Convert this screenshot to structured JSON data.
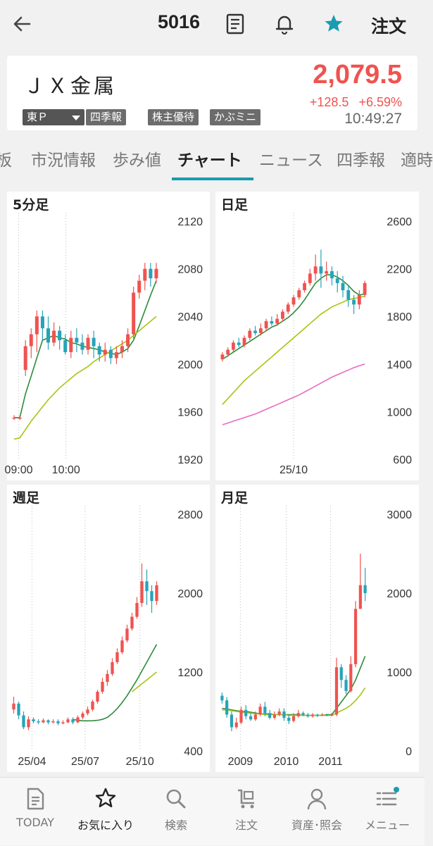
{
  "header": {
    "code": "5016",
    "order_label": "注文",
    "icons": [
      "back-arrow-icon",
      "memo-icon",
      "bell-icon",
      "star-icon"
    ],
    "favorite_color": "#1a9bb0"
  },
  "stock": {
    "name": "ＪＸ金属",
    "market": "東Ｐ",
    "badges": [
      "四季報",
      "株主優待",
      "かぶミニ"
    ],
    "price": "2,079.5",
    "change": "+128.5",
    "change_pct": "+6.59%",
    "time": "10:49:27",
    "up_color": "#ef5350"
  },
  "tabs": [
    {
      "label": "板"
    },
    {
      "label": "市況情報"
    },
    {
      "label": "歩み値"
    },
    {
      "label": "チャート",
      "active": true
    },
    {
      "label": "ニュース"
    },
    {
      "label": "四季報"
    },
    {
      "label": "適時"
    }
  ],
  "charts": [
    {
      "title": "5分足",
      "ylim": [
        1920,
        2120
      ],
      "yticks": [
        "2120",
        "2080",
        "2040",
        "2000",
        "1960",
        "1920"
      ],
      "xticks": [
        {
          "label": "09:00",
          "at": 0.05
        },
        {
          "label": "10:00",
          "at": 0.37
        }
      ],
      "candles": [
        [
          1955,
          1955,
          1953,
          1957
        ],
        [
          1955,
          1955,
          1953,
          1957
        ],
        [
          1995,
          2015,
          1990,
          2020
        ],
        [
          2015,
          2025,
          2005,
          2030
        ],
        [
          2025,
          2040,
          2010,
          2045
        ],
        [
          2040,
          2030,
          2020,
          2045
        ],
        [
          2030,
          2018,
          2012,
          2040
        ],
        [
          2018,
          2028,
          2015,
          2035
        ],
        [
          2028,
          2020,
          2012,
          2032
        ],
        [
          2020,
          2010,
          2008,
          2025
        ],
        [
          2010,
          2022,
          2005,
          2028
        ],
        [
          2022,
          2018,
          2010,
          2030
        ],
        [
          2018,
          2012,
          2008,
          2025
        ],
        [
          2012,
          2022,
          2008,
          2025
        ],
        [
          2022,
          2015,
          2005,
          2028
        ],
        [
          2015,
          2008,
          2002,
          2018
        ],
        [
          2008,
          2012,
          2002,
          2018
        ],
        [
          2012,
          2005,
          2000,
          2015
        ],
        [
          2005,
          2010,
          2000,
          2015
        ],
        [
          2010,
          2015,
          2005,
          2020
        ],
        [
          2015,
          2025,
          2010,
          2030
        ],
        [
          2025,
          2060,
          2020,
          2065
        ],
        [
          2060,
          2070,
          2055,
          2075
        ],
        [
          2070,
          2080,
          2062,
          2085
        ],
        [
          2080,
          2072,
          2065,
          2085
        ],
        [
          2072,
          2080,
          2068,
          2085
        ]
      ],
      "ma": [
        {
          "color": "#2e8b3a",
          "values": [
            1955,
            1955,
            1975,
            1990,
            2005,
            2020,
            2022,
            2024,
            2022,
            2021,
            2018,
            2017,
            2015,
            2014,
            2013,
            2012,
            2010,
            2009,
            2008,
            2010,
            2013,
            2020,
            2032,
            2045,
            2058,
            2070
          ]
        },
        {
          "color": "#a4c615",
          "values": [
            1937,
            1938,
            1945,
            1952,
            1958,
            1964,
            1970,
            1975,
            1980,
            1984,
            1988,
            1992,
            1995,
            1998,
            2002,
            2005,
            2008,
            2011,
            2014,
            2017,
            2020,
            2024,
            2028,
            2032,
            2036,
            2040
          ]
        }
      ]
    },
    {
      "title": "日足",
      "ylim": [
        600,
        2600
      ],
      "yticks": [
        "2600",
        "2200",
        "1800",
        "1400",
        "1000",
        "600"
      ],
      "xticks": [
        {
          "label": "25/10",
          "at": 0.5
        }
      ],
      "candles": [
        [
          1440,
          1480,
          1420,
          1500
        ],
        [
          1480,
          1520,
          1460,
          1540
        ],
        [
          1520,
          1580,
          1500,
          1600
        ],
        [
          1580,
          1560,
          1540,
          1620
        ],
        [
          1560,
          1620,
          1540,
          1640
        ],
        [
          1620,
          1680,
          1600,
          1700
        ],
        [
          1680,
          1660,
          1640,
          1720
        ],
        [
          1660,
          1700,
          1640,
          1740
        ],
        [
          1700,
          1760,
          1680,
          1780
        ],
        [
          1760,
          1740,
          1720,
          1800
        ],
        [
          1740,
          1780,
          1720,
          1820
        ],
        [
          1780,
          1840,
          1760,
          1860
        ],
        [
          1840,
          1900,
          1820,
          1920
        ],
        [
          1900,
          1960,
          1880,
          1980
        ],
        [
          1960,
          2020,
          1940,
          2040
        ],
        [
          2020,
          2080,
          2000,
          2100
        ],
        [
          2080,
          2160,
          2060,
          2200
        ],
        [
          2160,
          2220,
          2100,
          2320
        ],
        [
          2220,
          2160,
          2040,
          2360
        ],
        [
          2160,
          2180,
          2100,
          2260
        ],
        [
          2180,
          2120,
          2060,
          2220
        ],
        [
          2120,
          2080,
          2000,
          2180
        ],
        [
          2080,
          2020,
          1960,
          2140
        ],
        [
          2020,
          1940,
          1880,
          2060
        ],
        [
          1940,
          1900,
          1820,
          1980
        ],
        [
          1900,
          1980,
          1860,
          2020
        ],
        [
          1980,
          2080,
          1960,
          2100
        ]
      ],
      "ma": [
        {
          "color": "#2e8b3a",
          "values": [
            1440,
            1470,
            1500,
            1530,
            1560,
            1590,
            1620,
            1650,
            1680,
            1710,
            1730,
            1760,
            1790,
            1830,
            1880,
            1940,
            2010,
            2080,
            2120,
            2150,
            2150,
            2130,
            2100,
            2060,
            2010,
            1980,
            1990
          ]
        },
        {
          "color": "#a4c615",
          "values": [
            1060,
            1110,
            1160,
            1210,
            1260,
            1300,
            1340,
            1380,
            1420,
            1460,
            1500,
            1540,
            1580,
            1620,
            1660,
            1700,
            1740,
            1780,
            1820,
            1850,
            1880,
            1900,
            1920,
            1940,
            1950,
            1960,
            1970
          ]
        },
        {
          "color": "#e86cc0",
          "values": [
            890,
            905,
            920,
            935,
            950,
            965,
            980,
            1000,
            1020,
            1040,
            1060,
            1080,
            1100,
            1120,
            1140,
            1165,
            1190,
            1215,
            1240,
            1265,
            1290,
            1310,
            1330,
            1350,
            1370,
            1385,
            1400
          ]
        }
      ]
    },
    {
      "title": "週足",
      "ylim": [
        400,
        2800
      ],
      "yticks": [
        "2800",
        "2000",
        "1200",
        "400"
      ],
      "xticks": [
        {
          "label": "25/04",
          "at": 0.14
        },
        {
          "label": "25/07",
          "at": 0.5
        },
        {
          "label": "25/10",
          "at": 0.87
        }
      ],
      "candles": [
        [
          820,
          880,
          780,
          950
        ],
        [
          880,
          760,
          720,
          900
        ],
        [
          760,
          640,
          620,
          800
        ],
        [
          640,
          720,
          610,
          750
        ],
        [
          720,
          700,
          680,
          740
        ],
        [
          700,
          690,
          670,
          720
        ],
        [
          690,
          710,
          680,
          730
        ],
        [
          710,
          690,
          670,
          720
        ],
        [
          690,
          700,
          680,
          720
        ],
        [
          700,
          680,
          660,
          720
        ],
        [
          680,
          690,
          670,
          710
        ],
        [
          690,
          720,
          680,
          740
        ],
        [
          720,
          690,
          670,
          740
        ],
        [
          690,
          740,
          680,
          760
        ],
        [
          740,
          780,
          720,
          800
        ],
        [
          780,
          820,
          760,
          850
        ],
        [
          820,
          900,
          800,
          920
        ],
        [
          900,
          1000,
          880,
          1020
        ],
        [
          1000,
          1100,
          980,
          1140
        ],
        [
          1100,
          1180,
          1060,
          1220
        ],
        [
          1180,
          1300,
          1160,
          1340
        ],
        [
          1300,
          1400,
          1280,
          1440
        ],
        [
          1400,
          1520,
          1380,
          1560
        ],
        [
          1520,
          1640,
          1500,
          1680
        ],
        [
          1640,
          1760,
          1620,
          1800
        ],
        [
          1760,
          1900,
          1740,
          1960
        ],
        [
          1900,
          2120,
          1860,
          2300
        ],
        [
          2120,
          2020,
          1880,
          2240
        ],
        [
          2020,
          1920,
          1800,
          2080
        ],
        [
          1920,
          2080,
          1880,
          2120
        ]
      ],
      "ma": [
        {
          "color": "#2e8b3a",
          "offset": 12,
          "values": [
            720,
            710,
            705,
            705,
            706,
            710,
            720,
            740,
            780,
            830,
            890,
            960,
            1040,
            1120,
            1210,
            1300,
            1390,
            1480
          ]
        },
        {
          "color": "#a4c615",
          "offset": 24,
          "values": [
            1000,
            1040,
            1080,
            1120,
            1160,
            1200
          ]
        }
      ]
    },
    {
      "title": "月足",
      "ylim": [
        0,
        3000
      ],
      "yticks": [
        "3000",
        "2000",
        "1000",
        "0"
      ],
      "xticks": [
        {
          "label": "2009",
          "at": 0.14
        },
        {
          "label": "2010",
          "at": 0.45
        },
        {
          "label": "2011",
          "at": 0.75
        }
      ],
      "candles": [
        [
          700,
          640,
          600,
          740
        ],
        [
          640,
          460,
          420,
          680
        ],
        [
          460,
          300,
          250,
          500
        ],
        [
          300,
          360,
          280,
          420
        ],
        [
          360,
          520,
          340,
          560
        ],
        [
          520,
          440,
          400,
          580
        ],
        [
          440,
          400,
          380,
          480
        ],
        [
          400,
          460,
          380,
          500
        ],
        [
          460,
          560,
          440,
          600
        ],
        [
          560,
          480,
          440,
          620
        ],
        [
          480,
          420,
          400,
          520
        ],
        [
          420,
          460,
          400,
          500
        ],
        [
          460,
          500,
          440,
          540
        ],
        [
          500,
          420,
          380,
          540
        ],
        [
          420,
          380,
          340,
          460
        ],
        [
          380,
          440,
          360,
          480
        ],
        [
          440,
          480,
          420,
          520
        ],
        [
          480,
          460,
          440,
          500
        ],
        [
          460,
          440,
          420,
          480
        ],
        [
          440,
          460,
          420,
          480
        ],
        [
          460,
          450,
          430,
          470
        ],
        [
          450,
          460,
          440,
          480
        ],
        [
          460,
          450,
          440,
          470
        ],
        [
          450,
          460,
          440,
          480
        ],
        [
          460,
          1060,
          440,
          1180
        ],
        [
          1060,
          900,
          800,
          1100
        ],
        [
          900,
          760,
          720,
          960
        ],
        [
          760,
          1100,
          740,
          1200
        ],
        [
          1100,
          1800,
          1060,
          1900
        ],
        [
          1800,
          2100,
          1800,
          2500
        ],
        [
          2100,
          2000,
          1900,
          2320
        ]
      ],
      "ma": [
        {
          "color": "#2e8b3a",
          "values": [
            540,
            530,
            520,
            510,
            500,
            500,
            490,
            480,
            470,
            470,
            470,
            460,
            460,
            460,
            460,
            460,
            460,
            450,
            450,
            450,
            450,
            450,
            460,
            460,
            540,
            620,
            700,
            780,
            900,
            1050,
            1200
          ]
        },
        {
          "color": "#a4c615",
          "values": [
            520,
            520,
            510,
            500,
            490,
            480,
            480,
            470,
            470,
            460,
            460,
            460,
            460,
            460,
            450,
            450,
            450,
            450,
            450,
            450,
            450,
            450,
            450,
            450,
            480,
            510,
            540,
            580,
            640,
            710,
            800
          ]
        }
      ]
    }
  ],
  "nav": [
    {
      "label": "TODAY",
      "icon": "document-icon"
    },
    {
      "label": "お気に入り",
      "icon": "star-outline-icon",
      "active": true
    },
    {
      "label": "検索",
      "icon": "search-icon"
    },
    {
      "label": "注文",
      "icon": "cart-icon"
    },
    {
      "label": "資産･照会",
      "icon": "person-icon"
    },
    {
      "label": "メニュー",
      "icon": "menu-icon",
      "badge_color": "#1a9bb0"
    }
  ]
}
